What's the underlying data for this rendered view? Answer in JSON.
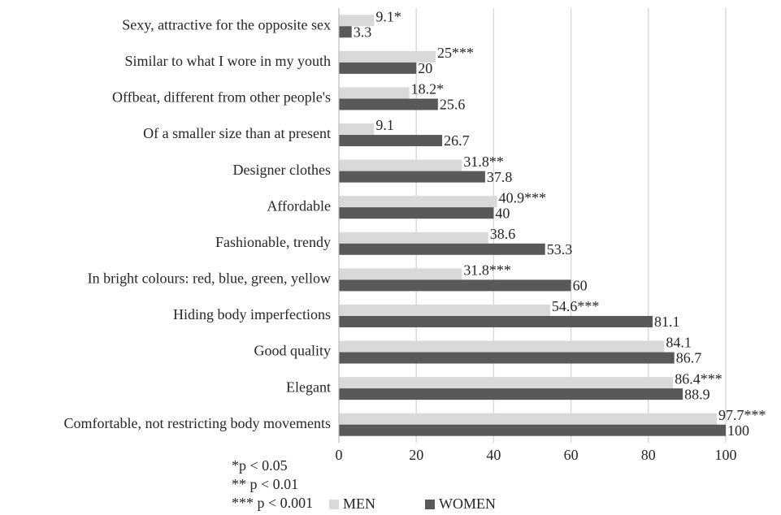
{
  "chart_data": {
    "type": "hbar",
    "categories": [
      "Sexy, attractive for the opposite sex",
      "Similar to what I wore in my youth",
      "Offbeat, different from other people's",
      "Of a smaller size than at present",
      "Designer clothes",
      "Affordable",
      "Fashionable, trendy",
      "In bright colours: red, blue, green, yellow",
      "Hiding body imperfections",
      "Good quality",
      "Elegant",
      "Comfortable, not restricting body movements"
    ],
    "series": [
      {
        "name": "MEN",
        "color": "#d9d9d9",
        "values": [
          9.1,
          25,
          18.2,
          9.1,
          31.8,
          40.9,
          38.6,
          31.8,
          54.6,
          84.1,
          86.4,
          97.7
        ],
        "value_labels": [
          "9.1*",
          "25***",
          "18.2*",
          "9.1",
          "31.8**",
          "40.9***",
          "38.6",
          "31.8***",
          "54.6***",
          "84.1",
          "86.4***",
          "97.7***"
        ]
      },
      {
        "name": "WOMEN",
        "color": "#595959",
        "values": [
          3.3,
          20,
          25.6,
          26.7,
          37.8,
          40,
          53.3,
          60,
          81.1,
          86.7,
          88.9,
          100
        ]
      }
    ],
    "xlim": [
      0,
      100
    ],
    "xticks": [
      0,
      20,
      40,
      60,
      80,
      100
    ],
    "grid": true,
    "annotations": [
      "*p < 0.05",
      "** p < 0.01",
      "*** p < 0.001"
    ],
    "legend": "bottom"
  }
}
